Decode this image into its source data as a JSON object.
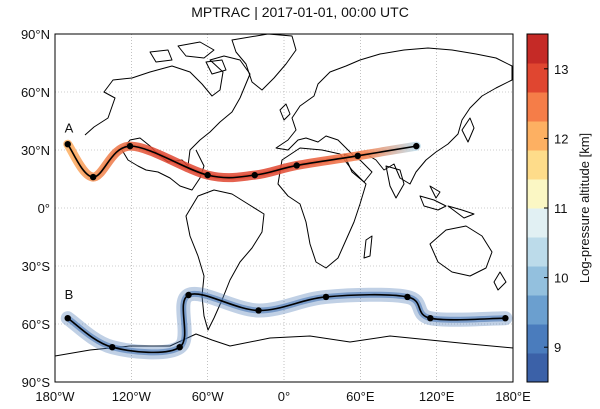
{
  "title": "MPTRAC | 2017-01-01, 00:00 UTC",
  "map": {
    "lon_ticks": [
      "180°W",
      "120°W",
      "60°W",
      "0°",
      "60°E",
      "120°E",
      "180°E"
    ],
    "lat_ticks": [
      "90°N",
      "60°N",
      "30°N",
      "0°",
      "30°S",
      "60°S",
      "90°S"
    ],
    "lon_range": [
      -180,
      180
    ],
    "lat_range": [
      -90,
      90
    ],
    "grid": true,
    "coastline_color": "#000000"
  },
  "trajectories": [
    {
      "label": "A",
      "label_pos": {
        "lon": -169,
        "lat": 39
      },
      "points": [
        {
          "lon": -170,
          "lat": 33
        },
        {
          "lon": -150,
          "lat": 16
        },
        {
          "lon": -121,
          "lat": 32
        },
        {
          "lon": -60,
          "lat": 17
        },
        {
          "lon": -23,
          "lat": 17
        },
        {
          "lon": 10,
          "lat": 22
        },
        {
          "lon": 58,
          "lat": 27
        },
        {
          "lon": 104,
          "lat": 32
        }
      ],
      "plume_color": "#e34a33"
    },
    {
      "label": "B",
      "label_pos": {
        "lon": -169,
        "lat": -47
      },
      "points": [
        {
          "lon": -170,
          "lat": -57
        },
        {
          "lon": -135,
          "lat": -72
        },
        {
          "lon": -82,
          "lat": -72
        },
        {
          "lon": -75,
          "lat": -45
        },
        {
          "lon": -20,
          "lat": -53
        },
        {
          "lon": 33,
          "lat": -46
        },
        {
          "lon": 97,
          "lat": -46
        },
        {
          "lon": 115,
          "lat": -57
        },
        {
          "lon": 174,
          "lat": -57
        }
      ],
      "plume_color": "#4a78b5"
    }
  ],
  "colorbar": {
    "label": "Log-pressure altitude [km]",
    "min": 8.5,
    "max": 13.5,
    "ticks": [
      9,
      10,
      11,
      12,
      13
    ],
    "tick_labels": [
      "9",
      "10",
      "11",
      "12",
      "13"
    ],
    "colors": [
      "#3b61a8",
      "#4a7cbd",
      "#6b9fcf",
      "#93c0de",
      "#bcdbea",
      "#e1f0f3",
      "#fbf7c4",
      "#fedc8a",
      "#fdb062",
      "#f57d48",
      "#e04630",
      "#c52a26"
    ]
  }
}
